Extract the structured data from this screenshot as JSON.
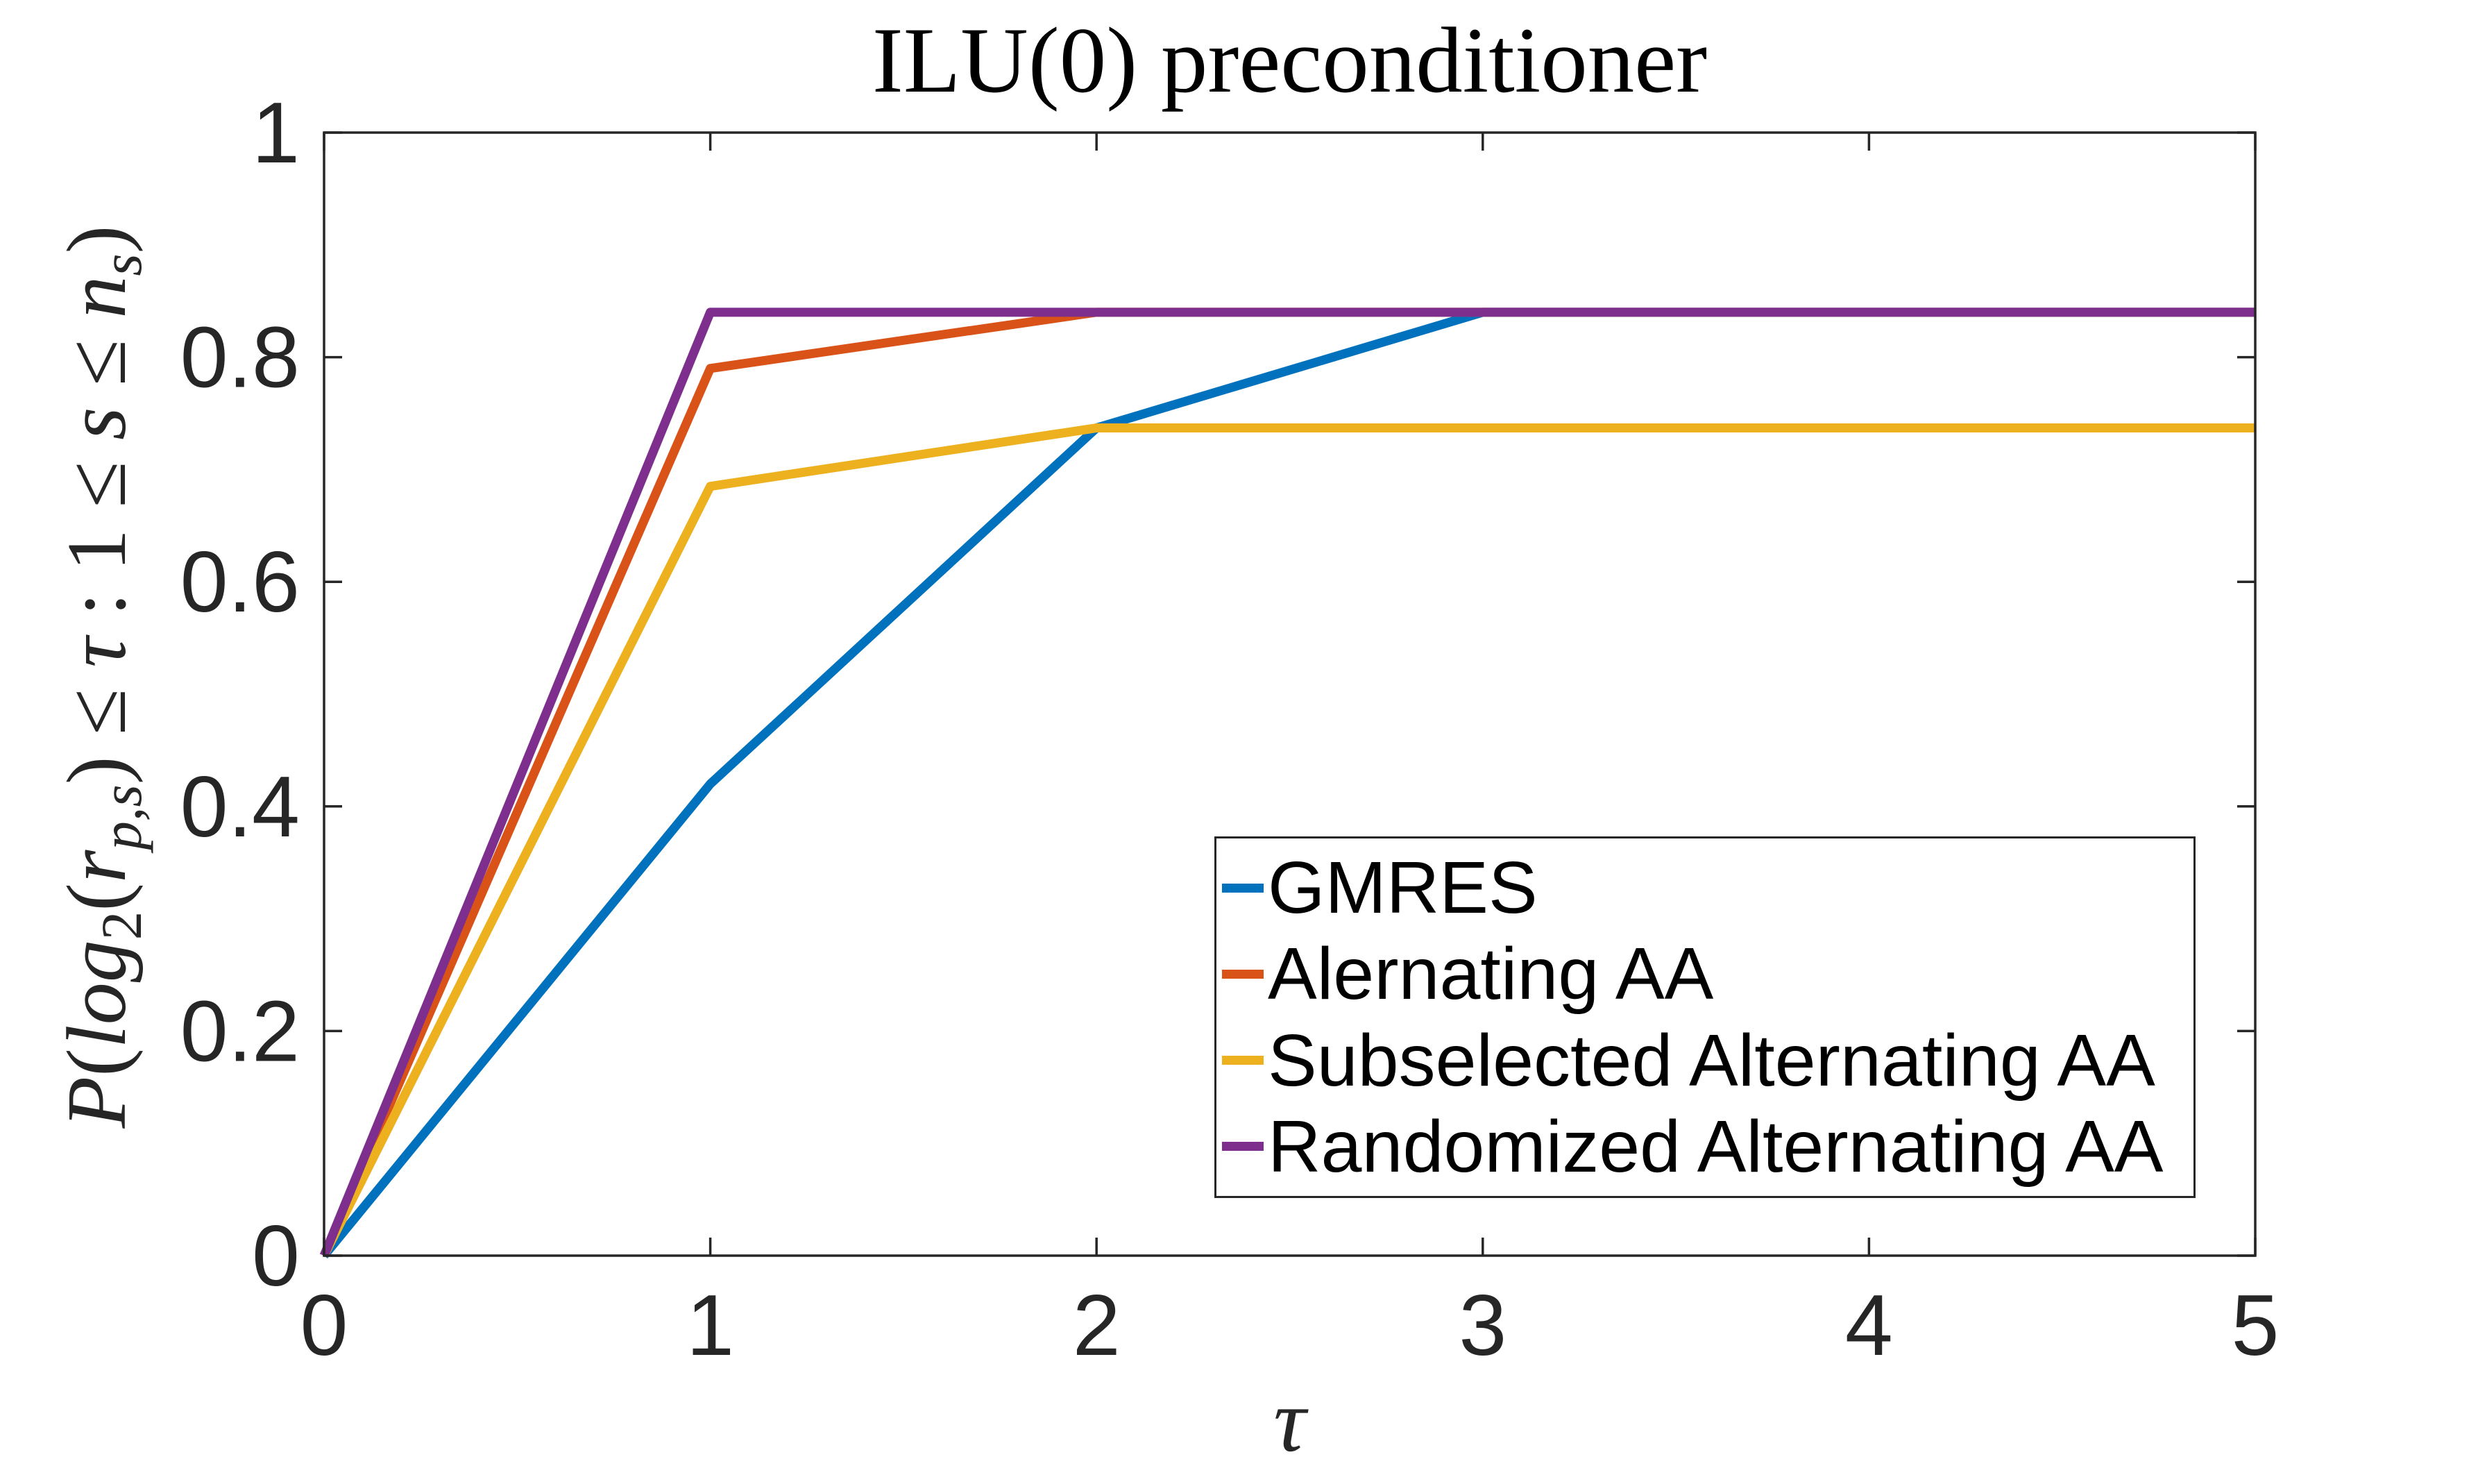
{
  "title": "ILU(0) preconditioner",
  "axes": {
    "x": {
      "label": "τ",
      "tick_values": [
        0,
        1,
        2,
        3,
        4,
        5
      ],
      "tick_labels": [
        "0",
        "1",
        "2",
        "3",
        "4",
        "5"
      ]
    },
    "y": {
      "label_plain": "P(log2(r_p,s) ≤ τ : 1 ≤ s ≤ n_s)",
      "label_runs": [
        {
          "t": "P",
          "s": "i"
        },
        {
          "t": "(",
          "s": "n"
        },
        {
          "t": "log",
          "s": "i"
        },
        {
          "t": "2",
          "s": "sub"
        },
        {
          "t": "(",
          "s": "n"
        },
        {
          "t": "r",
          "s": "i"
        },
        {
          "t": "p,s",
          "s": "subi"
        },
        {
          "t": ")",
          "s": "n"
        },
        {
          "t": " ≤ ",
          "s": "n"
        },
        {
          "t": "τ",
          "s": "i"
        },
        {
          "t": " : 1 ≤ ",
          "s": "n"
        },
        {
          "t": "s",
          "s": "i"
        },
        {
          "t": " ≤ ",
          "s": "n"
        },
        {
          "t": "n",
          "s": "i"
        },
        {
          "t": "s",
          "s": "subi"
        },
        {
          "t": ")",
          "s": "n"
        }
      ],
      "tick_values": [
        0,
        0.2,
        0.4,
        0.6,
        0.8,
        1
      ],
      "tick_labels": [
        "0",
        "0.2",
        "0.4",
        "0.6",
        "0.8",
        "1"
      ]
    }
  },
  "legend": {
    "position": "inside lower right",
    "items": [
      {
        "label": "GMRES",
        "color": "#0072BD"
      },
      {
        "label": "Alernating AA",
        "color": "#D95319"
      },
      {
        "label": "Subselected Alternating AA",
        "color": "#EDB120"
      },
      {
        "label": "Randomized Alternating AA",
        "color": "#7E2F8E"
      }
    ]
  },
  "chart_data": {
    "type": "line",
    "title": "ILU(0) preconditioner",
    "xlabel": "τ",
    "ylabel": "P(log2(r_p,s) ≤ τ : 1 ≤ s ≤ n_s)",
    "xlim": [
      0,
      5
    ],
    "ylim": [
      0,
      1
    ],
    "grid": false,
    "legend_position": "lower right",
    "x": [
      0,
      1,
      2,
      3,
      4,
      5
    ],
    "series": [
      {
        "name": "GMRES",
        "color": "#0072BD",
        "values": [
          0,
          0.42,
          0.737,
          0.84,
          0.84,
          0.84
        ]
      },
      {
        "name": "Alernating AA",
        "color": "#D95319",
        "values": [
          0,
          0.79,
          0.84,
          0.84,
          0.84,
          0.84
        ]
      },
      {
        "name": "Subselected Alternating AA",
        "color": "#EDB120",
        "values": [
          0,
          0.685,
          0.737,
          0.737,
          0.737,
          0.737
        ]
      },
      {
        "name": "Randomized Alternating AA",
        "color": "#7E2F8E",
        "values": [
          0,
          0.84,
          0.84,
          0.84,
          0.84,
          0.84
        ]
      }
    ]
  },
  "colors": {
    "background": "#ffffff",
    "axis": "#262626",
    "title_text": "#000000",
    "legend_text": "#000000"
  }
}
